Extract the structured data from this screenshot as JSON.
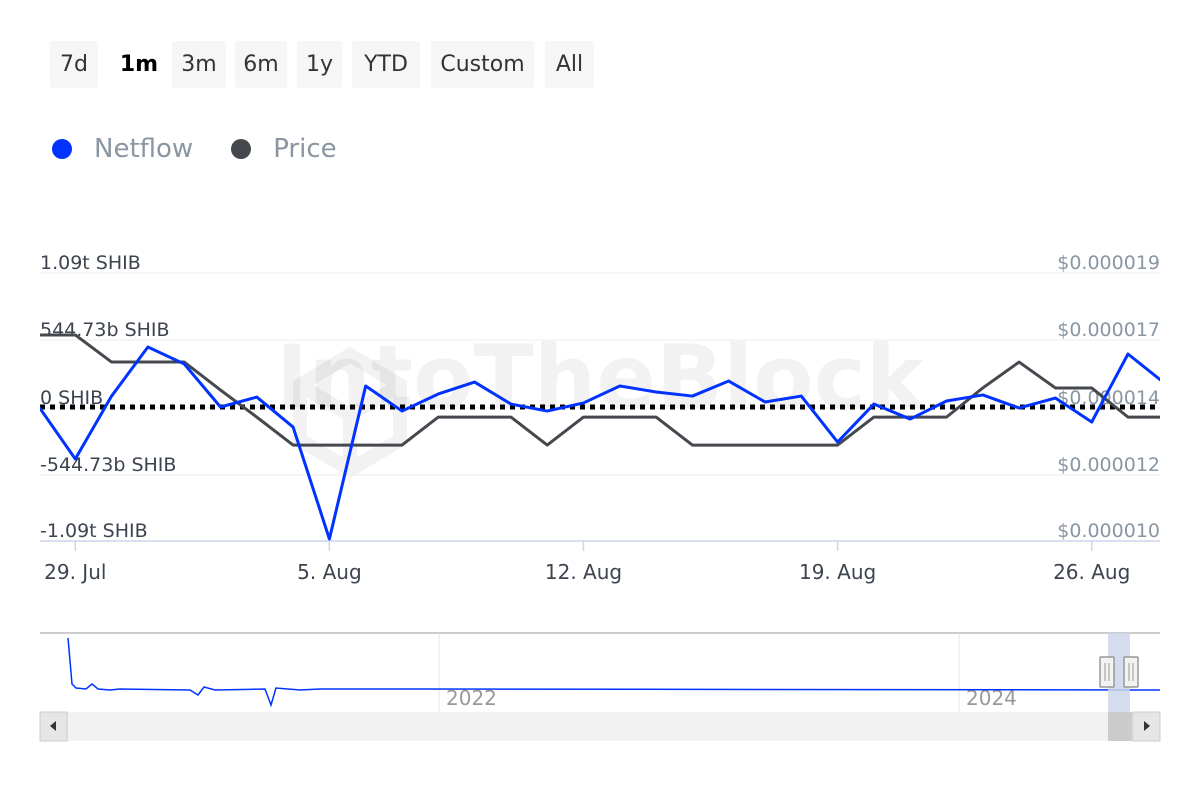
{
  "range_selector": {
    "buttons": [
      {
        "label": "7d",
        "selected": false
      },
      {
        "label": "1m",
        "selected": true
      },
      {
        "label": "3m",
        "selected": false
      },
      {
        "label": "6m",
        "selected": false
      },
      {
        "label": "1y",
        "selected": false
      },
      {
        "label": "YTD",
        "selected": false
      },
      {
        "label": "Custom",
        "selected": false
      },
      {
        "label": "All",
        "selected": false
      }
    ]
  },
  "legend": [
    {
      "label": "Netflow",
      "color": "#0033ff"
    },
    {
      "label": "Price",
      "color": "#45494e"
    }
  ],
  "watermark": "IntoTheBlock",
  "chart_data": {
    "type": "line",
    "x": [
      "28. Jul",
      "29. Jul",
      "30. Jul",
      "31. Jul",
      "1. Aug",
      "2. Aug",
      "3. Aug",
      "4. Aug",
      "5. Aug",
      "6. Aug",
      "7. Aug",
      "8. Aug",
      "9. Aug",
      "10. Aug",
      "11. Aug",
      "12. Aug",
      "13. Aug",
      "14. Aug",
      "15. Aug",
      "16. Aug",
      "17. Aug",
      "18. Aug",
      "19. Aug",
      "20. Aug",
      "21. Aug",
      "22. Aug",
      "23. Aug",
      "24. Aug",
      "25. Aug",
      "26. Aug",
      "27. Aug",
      "28. Aug"
    ],
    "x_tick_labels": [
      "29. Jul",
      "5. Aug",
      "12. Aug",
      "19. Aug",
      "26. Aug"
    ],
    "series": [
      {
        "name": "Netflow",
        "axis": "left",
        "unit": "SHIB (billions)",
        "color": "#0033ff",
        "values": [
          0,
          -423,
          89,
          488,
          350,
          0,
          81,
          -163,
          -1073,
          171,
          -33,
          106,
          203,
          24,
          -33,
          33,
          171,
          122,
          89,
          211,
          41,
          89,
          -285,
          24,
          -98,
          49,
          98,
          -8,
          73,
          -122,
          431,
          195
        ]
      },
      {
        "name": "Price",
        "axis": "right",
        "unit": "USD",
        "color": "#45494e",
        "values": [
          1.692e-05,
          1.692e-05,
          1.601e-05,
          1.601e-05,
          1.601e-05,
          1.507e-05,
          1.416e-05,
          1.322e-05,
          1.322e-05,
          1.322e-05,
          1.322e-05,
          1.416e-05,
          1.416e-05,
          1.416e-05,
          1.322e-05,
          1.416e-05,
          1.416e-05,
          1.416e-05,
          1.322e-05,
          1.322e-05,
          1.322e-05,
          1.322e-05,
          1.322e-05,
          1.416e-05,
          1.416e-05,
          1.416e-05,
          1.514e-05,
          1.601e-05,
          1.514e-05,
          1.514e-05,
          1.416e-05,
          1.416e-05
        ]
      }
    ],
    "y_left": {
      "tick_labels": [
        "1.09t SHIB",
        "544.73b SHIB",
        "0 SHIB",
        "-544.73b SHIB",
        "-1.09t SHIB"
      ],
      "range": [
        -1089.46,
        1089.46
      ]
    },
    "y_right": {
      "tick_labels": [
        "$0.000019",
        "$0.000017",
        "$0.000014",
        "$0.000012",
        "$0.000010"
      ],
      "range": [
        1e-05,
        1.9e-05
      ]
    },
    "zero_line": "dotted",
    "grid": true,
    "legend_position": "top-left"
  },
  "navigator": {
    "tick_labels": [
      "2022",
      "2024"
    ],
    "scroll_left": "◀",
    "scroll_right": "▶"
  }
}
